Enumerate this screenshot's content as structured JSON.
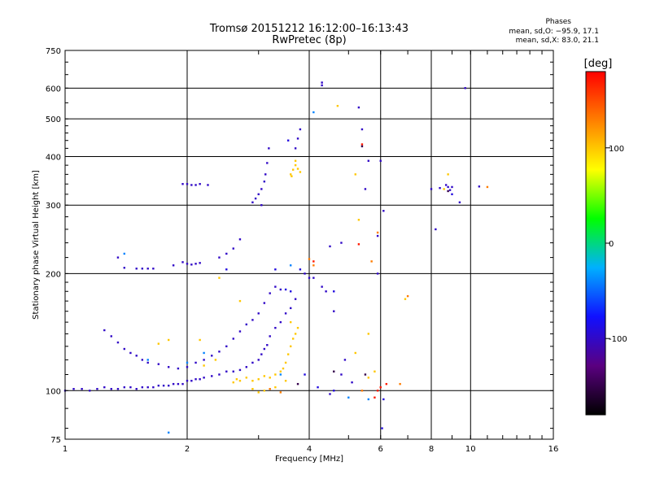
{
  "header": {
    "title_line1": "Tromsø 20151212 16:12:00–16:13:43",
    "title_line2": "RwPretec (8p)"
  },
  "phase_info": {
    "heading": "Phases",
    "line_o": "mean, sd,O: −95.9, 17.1",
    "line_x": "mean, sd,X:  83.0, 21.1"
  },
  "chart_data": {
    "type": "scatter",
    "xlabel": "Frequency [MHz]",
    "ylabel": "Stationary phase Virtual Height [km]",
    "xscale": "log",
    "yscale": "log",
    "xlim": [
      1,
      16
    ],
    "ylim": [
      75,
      750
    ],
    "x_ticks": [
      1,
      2,
      4,
      6,
      8,
      10,
      16
    ],
    "y_ticks": [
      75,
      100,
      200,
      300,
      400,
      500,
      600,
      750
    ],
    "grid": true,
    "colorbar": {
      "label": "[deg]",
      "range": [
        -180,
        180
      ],
      "ticks": [
        100,
        0,
        -100
      ],
      "colormap": [
        "#000000",
        "#5a0080",
        "#1010ff",
        "#00b0ff",
        "#00ff00",
        "#ffff00",
        "#ff8000",
        "#ff0000"
      ]
    },
    "series": [
      {
        "phase": -100,
        "points": [
          [
            1.0,
            100
          ],
          [
            1.05,
            101
          ],
          [
            1.1,
            101
          ],
          [
            1.15,
            100
          ],
          [
            1.2,
            101
          ],
          [
            1.25,
            102
          ],
          [
            1.3,
            101
          ],
          [
            1.35,
            101
          ],
          [
            1.4,
            102
          ],
          [
            1.45,
            102
          ],
          [
            1.5,
            101
          ],
          [
            1.55,
            102
          ],
          [
            1.6,
            102
          ],
          [
            1.65,
            102
          ],
          [
            1.7,
            103
          ],
          [
            1.75,
            103
          ],
          [
            1.8,
            103
          ],
          [
            1.85,
            104
          ],
          [
            1.9,
            104
          ],
          [
            1.95,
            104
          ],
          [
            2.0,
            106
          ],
          [
            2.05,
            106
          ],
          [
            2.1,
            107
          ],
          [
            2.15,
            107
          ],
          [
            2.2,
            108
          ],
          [
            2.3,
            109
          ],
          [
            2.4,
            110
          ],
          [
            2.5,
            112
          ],
          [
            2.6,
            112
          ],
          [
            2.7,
            113
          ],
          [
            2.8,
            115
          ],
          [
            2.9,
            118
          ],
          [
            3.0,
            120
          ],
          [
            3.05,
            124
          ],
          [
            3.1,
            128
          ],
          [
            3.15,
            131
          ],
          [
            3.2,
            138
          ],
          [
            3.3,
            145
          ],
          [
            3.4,
            150
          ],
          [
            3.5,
            158
          ],
          [
            3.6,
            163
          ],
          [
            3.7,
            172
          ],
          [
            1.25,
            143
          ],
          [
            1.3,
            138
          ],
          [
            1.35,
            133
          ],
          [
            1.4,
            128
          ],
          [
            1.45,
            125
          ],
          [
            1.5,
            123
          ],
          [
            1.55,
            120
          ],
          [
            1.6,
            118
          ],
          [
            1.7,
            117
          ],
          [
            1.8,
            115
          ],
          [
            1.9,
            114
          ],
          [
            2.0,
            115
          ],
          [
            2.1,
            118
          ],
          [
            2.2,
            120
          ],
          [
            2.3,
            123
          ],
          [
            2.4,
            126
          ],
          [
            2.5,
            130
          ],
          [
            2.6,
            136
          ],
          [
            2.7,
            142
          ],
          [
            2.8,
            148
          ],
          [
            2.9,
            152
          ],
          [
            3.0,
            158
          ],
          [
            3.1,
            168
          ],
          [
            3.2,
            178
          ],
          [
            3.3,
            185
          ],
          [
            3.4,
            182
          ],
          [
            1.35,
            220
          ],
          [
            1.4,
            207
          ],
          [
            1.5,
            206
          ],
          [
            1.55,
            206
          ],
          [
            1.6,
            206
          ],
          [
            1.65,
            206
          ],
          [
            1.85,
            210
          ],
          [
            1.95,
            214
          ],
          [
            2.0,
            212
          ],
          [
            2.05,
            211
          ],
          [
            2.1,
            212
          ],
          [
            2.15,
            213
          ],
          [
            2.4,
            220
          ],
          [
            2.5,
            225
          ],
          [
            2.6,
            232
          ],
          [
            2.7,
            245
          ],
          [
            1.95,
            340
          ],
          [
            2.0,
            340
          ],
          [
            2.05,
            338
          ],
          [
            2.1,
            338
          ],
          [
            2.15,
            340
          ],
          [
            2.25,
            338
          ],
          [
            2.9,
            305
          ],
          [
            2.95,
            312
          ],
          [
            3.0,
            320
          ],
          [
            3.05,
            330
          ],
          [
            3.1,
            345
          ],
          [
            3.12,
            360
          ],
          [
            3.15,
            385
          ],
          [
            3.18,
            420
          ],
          [
            3.05,
            300
          ],
          [
            3.7,
            420
          ],
          [
            3.75,
            445
          ],
          [
            3.8,
            470
          ],
          [
            4.3,
            620
          ],
          [
            4.3,
            610
          ],
          [
            5.3,
            535
          ],
          [
            5.4,
            470
          ],
          [
            5.6,
            390
          ],
          [
            5.5,
            330
          ],
          [
            6.0,
            390
          ],
          [
            6.1,
            290
          ],
          [
            5.9,
            250
          ],
          [
            4.5,
            235
          ],
          [
            4.8,
            240
          ],
          [
            5.9,
            200
          ],
          [
            4.3,
            185
          ],
          [
            4.4,
            180
          ],
          [
            4.6,
            160
          ],
          [
            4.9,
            120
          ],
          [
            5.1,
            105
          ],
          [
            4.1,
            195
          ],
          [
            4.0,
            195
          ],
          [
            3.9,
            200
          ],
          [
            8.0,
            330
          ],
          [
            8.4,
            332
          ],
          [
            8.8,
            334
          ],
          [
            9.0,
            334
          ],
          [
            8.9,
            328
          ],
          [
            8.7,
            338
          ],
          [
            9.4,
            305
          ],
          [
            8.2,
            260
          ],
          [
            9.7,
            600
          ],
          [
            10.5,
            335
          ],
          [
            4.8,
            110
          ],
          [
            4.5,
            98
          ]
        ]
      },
      {
        "phase": -90,
        "points": [
          [
            3.55,
            440
          ],
          [
            3.3,
            205
          ],
          [
            3.8,
            205
          ],
          [
            4.6,
            180
          ],
          [
            3.5,
            182
          ],
          [
            3.6,
            180
          ],
          [
            2.5,
            205
          ],
          [
            3.9,
            110
          ],
          [
            4.2,
            102
          ],
          [
            4.6,
            100
          ],
          [
            6.1,
            95
          ],
          [
            6.05,
            80
          ],
          [
            9.0,
            320
          ]
        ]
      },
      {
        "phase": -40,
        "points": [
          [
            1.4,
            225
          ],
          [
            1.6,
            120
          ],
          [
            1.8,
            78
          ],
          [
            2.0,
            118
          ],
          [
            4.1,
            520
          ],
          [
            2.2,
            125
          ],
          [
            3.6,
            210
          ],
          [
            3.4,
            110
          ],
          [
            5.0,
            96
          ],
          [
            5.6,
            95
          ]
        ]
      },
      {
        "phase": 100,
        "points": [
          [
            3.6,
            360
          ],
          [
            3.65,
            370
          ],
          [
            3.7,
            380
          ],
          [
            3.75,
            372
          ],
          [
            3.8,
            365
          ],
          [
            3.7,
            390
          ],
          [
            3.62,
            356
          ],
          [
            4.7,
            540
          ],
          [
            5.2,
            360
          ],
          [
            2.6,
            105
          ],
          [
            2.65,
            107
          ],
          [
            2.7,
            106
          ],
          [
            2.8,
            108
          ],
          [
            2.9,
            106
          ],
          [
            3.0,
            107
          ],
          [
            3.1,
            109
          ],
          [
            3.2,
            108
          ],
          [
            3.3,
            110
          ],
          [
            3.4,
            112
          ],
          [
            3.45,
            114
          ],
          [
            3.5,
            118
          ],
          [
            3.55,
            124
          ],
          [
            3.6,
            130
          ],
          [
            3.65,
            136
          ],
          [
            3.7,
            140
          ],
          [
            3.75,
            145
          ],
          [
            3.5,
            106
          ],
          [
            3.3,
            102
          ],
          [
            3.1,
            100
          ],
          [
            2.9,
            101
          ],
          [
            3.0,
            99
          ],
          [
            2.2,
            116
          ],
          [
            2.35,
            120
          ],
          [
            2.15,
            135
          ],
          [
            1.8,
            135
          ],
          [
            1.7,
            132
          ],
          [
            2.7,
            170
          ],
          [
            3.6,
            150
          ],
          [
            2.4,
            195
          ],
          [
            5.2,
            125
          ],
          [
            5.6,
            140
          ],
          [
            5.3,
            275
          ],
          [
            6.9,
            172
          ],
          [
            8.8,
            360
          ],
          [
            8.6,
            330
          ],
          [
            5.8,
            112
          ],
          [
            5.6,
            108
          ]
        ]
      },
      {
        "phase": 130,
        "points": [
          [
            4.1,
            210
          ],
          [
            6.7,
            104
          ],
          [
            7.0,
            175
          ],
          [
            5.9,
            255
          ],
          [
            4.0,
            218
          ],
          [
            5.7,
            215
          ],
          [
            5.4,
            100
          ],
          [
            11.0,
            334
          ],
          [
            3.2,
            101
          ],
          [
            3.4,
            99
          ]
        ]
      },
      {
        "phase": 170,
        "points": [
          [
            5.3,
            238
          ],
          [
            5.4,
            430
          ],
          [
            5.9,
            100
          ],
          [
            6.2,
            104
          ],
          [
            5.8,
            96
          ],
          [
            6.0,
            102
          ],
          [
            4.1,
            215
          ]
        ]
      },
      {
        "phase": -150,
        "points": [
          [
            5.4,
            425
          ],
          [
            3.75,
            104
          ],
          [
            4.6,
            112
          ],
          [
            5.5,
            110
          ],
          [
            8.8,
            326
          ]
        ]
      }
    ]
  }
}
